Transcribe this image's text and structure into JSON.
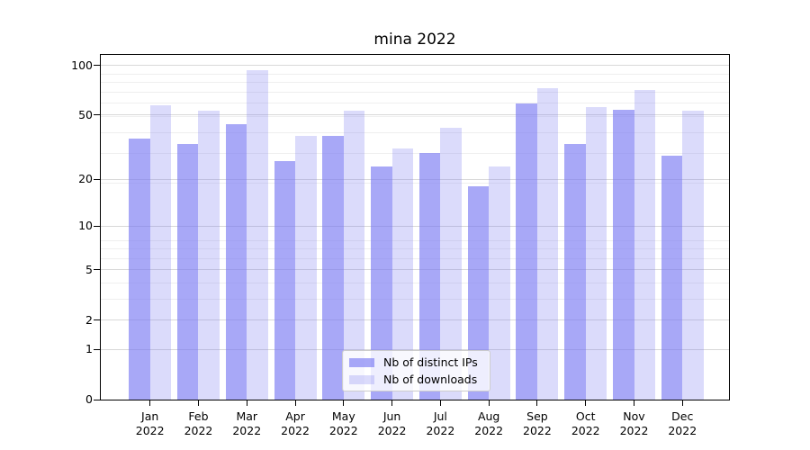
{
  "chart_data": {
    "type": "bar",
    "title": "mina 2022",
    "categories": [
      "Jan",
      "Feb",
      "Mar",
      "Apr",
      "May",
      "Jun",
      "Jul",
      "Aug",
      "Sep",
      "Oct",
      "Nov",
      "Dec"
    ],
    "x_sublabel": "2022",
    "series": [
      {
        "name": "Nb of distinct IPs",
        "color": "rgba(122,122,242,0.65)",
        "values": [
          36,
          33,
          44,
          26,
          37,
          24,
          29,
          18,
          59,
          33,
          54,
          28
        ]
      },
      {
        "name": "Nb of downloads",
        "color": "rgba(122,122,242,0.27)",
        "values": [
          57,
          53,
          94,
          37,
          53,
          31,
          42,
          24,
          73,
          56,
          71,
          53
        ]
      }
    ],
    "xlabel": "",
    "ylabel": "",
    "y_scale": "log1p",
    "y_ticks": [
      0,
      1,
      2,
      5,
      10,
      20,
      50,
      100
    ],
    "ylim": [
      0,
      116
    ],
    "grid": "horizontal, major and minor",
    "legend_position": "lower center",
    "colors": {
      "grid_major": "#d8d8d8",
      "grid_minor": "#efefef",
      "axis": "#000000",
      "background": "#ffffff"
    }
  }
}
